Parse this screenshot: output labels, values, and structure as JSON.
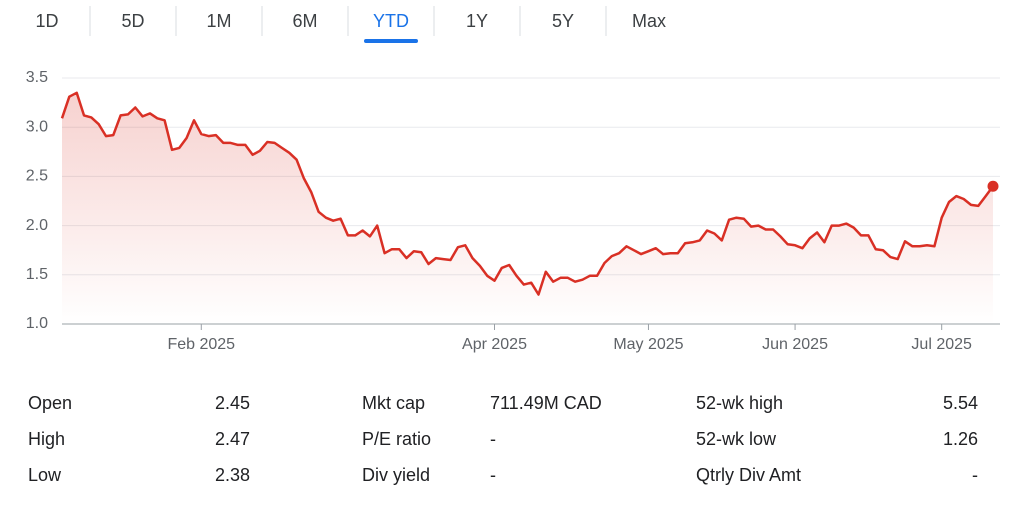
{
  "tabs": [
    "1D",
    "5D",
    "1M",
    "6M",
    "YTD",
    "1Y",
    "5Y",
    "Max"
  ],
  "selected_tab": 4,
  "chart_data": {
    "type": "line",
    "color": "#d93025",
    "categories": [
      null,
      null,
      null,
      null,
      null,
      null,
      null,
      null,
      null,
      null,
      null,
      null,
      null,
      null,
      null,
      null,
      null,
      null,
      null,
      "Feb 2025",
      null,
      null,
      null,
      null,
      null,
      null,
      null,
      null,
      null,
      null,
      null,
      null,
      null,
      null,
      null,
      null,
      null,
      null,
      null,
      null,
      null,
      null,
      null,
      null,
      null,
      null,
      null,
      null,
      null,
      null,
      null,
      null,
      null,
      null,
      null,
      null,
      null,
      null,
      null,
      "Apr 2025",
      null,
      null,
      null,
      null,
      null,
      null,
      null,
      null,
      null,
      null,
      null,
      null,
      null,
      null,
      null,
      null,
      null,
      null,
      null,
      null,
      "May 2025",
      null,
      null,
      null,
      null,
      null,
      null,
      null,
      null,
      null,
      null,
      null,
      null,
      null,
      null,
      null,
      null,
      null,
      null,
      null,
      "Jun 2025",
      null,
      null,
      null,
      null,
      null,
      null,
      null,
      null,
      null,
      null,
      null,
      null,
      null,
      null,
      null,
      null,
      null,
      null,
      null,
      "Jul 2025",
      null,
      null,
      null,
      null,
      null,
      null,
      null
    ],
    "values": [
      3.09,
      3.31,
      3.35,
      3.12,
      3.1,
      3.03,
      2.91,
      2.92,
      3.12,
      3.13,
      3.2,
      3.11,
      3.14,
      3.09,
      3.07,
      2.77,
      2.79,
      2.89,
      3.07,
      2.93,
      2.91,
      2.92,
      2.84,
      2.84,
      2.82,
      2.82,
      2.72,
      2.76,
      2.85,
      2.84,
      2.79,
      2.74,
      2.67,
      2.48,
      2.34,
      2.14,
      2.08,
      2.05,
      2.07,
      1.9,
      1.9,
      1.95,
      1.89,
      2.0,
      1.72,
      1.76,
      1.76,
      1.67,
      1.74,
      1.73,
      1.61,
      1.67,
      1.66,
      1.65,
      1.78,
      1.8,
      1.67,
      1.59,
      1.49,
      1.44,
      1.57,
      1.6,
      1.49,
      1.4,
      1.42,
      1.3,
      1.53,
      1.43,
      1.47,
      1.47,
      1.43,
      1.45,
      1.49,
      1.49,
      1.62,
      1.69,
      1.72,
      1.79,
      1.75,
      1.71,
      1.74,
      1.77,
      1.71,
      1.72,
      1.72,
      1.82,
      1.83,
      1.85,
      1.95,
      1.92,
      1.85,
      2.06,
      2.08,
      2.07,
      1.99,
      2.0,
      1.96,
      1.96,
      1.89,
      1.81,
      1.8,
      1.77,
      1.87,
      1.93,
      1.83,
      2.0,
      2.0,
      2.02,
      1.98,
      1.9,
      1.9,
      1.76,
      1.75,
      1.68,
      1.66,
      1.84,
      1.79,
      1.79,
      1.8,
      1.79,
      2.08,
      2.24,
      2.3,
      2.27,
      2.21,
      2.2,
      2.3,
      2.4
    ],
    "ylim": [
      1.0,
      3.5
    ],
    "yticks": [
      {
        "value": 1.0,
        "label": "1.0"
      },
      1.5,
      {
        "value": 2.0,
        "label": "2.0"
      },
      2.5,
      {
        "value": 3.0,
        "label": "3.0"
      },
      3.5
    ],
    "grid": true
  },
  "stats": [
    [
      {
        "label": "Open",
        "value": "2.45"
      },
      {
        "label": "High",
        "value": "2.47"
      },
      {
        "label": "Low",
        "value": "2.38"
      }
    ],
    [
      {
        "label": "Mkt cap",
        "value": "711.49M CAD"
      },
      {
        "label": "P/E ratio",
        "value": "-"
      },
      {
        "label": "Div yield",
        "value": "-"
      }
    ],
    [
      {
        "label": "52-wk high",
        "value": "5.54"
      },
      {
        "label": "52-wk low",
        "value": "1.26"
      },
      {
        "label": "Qtrly Div Amt",
        "value": "-"
      }
    ]
  ]
}
